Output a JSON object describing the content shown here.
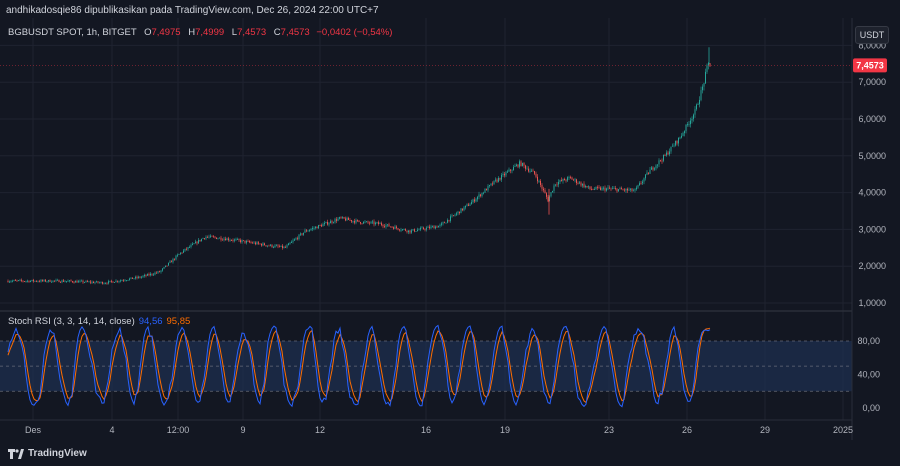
{
  "header": {
    "published_by": "andhikadosqie86 dipublikasikan pada TradingView.com, Dec 26, 2024 22:00 UTC+7"
  },
  "legend": {
    "symbol": "BGBUSDT SPOT, 1h, BITGET",
    "o_label": "O",
    "o_value": "7,4975",
    "h_label": "H",
    "h_value": "7,4999",
    "l_label": "L",
    "l_value": "7,4573",
    "c_label": "C",
    "c_value": "7,4573",
    "change": "−0,0402 (−0,54%)"
  },
  "axis": {
    "unit_label": "USDT",
    "price_ticks": [
      "8,0000",
      "7,0000",
      "6,0000",
      "5,0000",
      "4,0000",
      "3,0000",
      "2,0000",
      "1,0000"
    ],
    "last_price": "7,4573",
    "rsi_ticks": [
      "80,00",
      "40,00",
      "0,00"
    ],
    "x_ticks": [
      "Des",
      "4",
      "12:00",
      "9",
      "12",
      "16",
      "19",
      "23",
      "26",
      "29",
      "2025"
    ]
  },
  "stoch_rsi": {
    "label": "Stoch RSI (3, 3, 14, 14, close)",
    "k_value": "94,56",
    "d_value": "95,85"
  },
  "branding": {
    "name": "TradingView"
  },
  "colors": {
    "up": "#26a69a",
    "down": "#ef5350",
    "k_line": "#2962ff",
    "d_line": "#ff6d00",
    "price_tag": "#f23645",
    "band_fill": "#1e2f4f"
  },
  "chart_data": [
    {
      "type": "candlestick",
      "title": "BGBUSDT SPOT, 1h, BITGET",
      "ylim": [
        1.0,
        8.0
      ],
      "x_ticks": [
        "Des",
        "4",
        "12:00",
        "9",
        "12",
        "16",
        "19",
        "23",
        "26",
        "29",
        "2025"
      ],
      "approx_close_path": [
        {
          "x": "Des",
          "y": 1.6
        },
        {
          "x": "4",
          "y": 1.55
        },
        {
          "x": "12:00",
          "y": 2.0
        },
        {
          "x": "9",
          "y": 2.8
        },
        {
          "x": "12",
          "y": 3.2
        },
        {
          "x": "16",
          "y": 3.0
        },
        {
          "x": "19",
          "y": 4.5
        },
        {
          "x": "23",
          "y": 4.1
        },
        {
          "x": "26",
          "y": 6.3
        },
        {
          "x": "26",
          "y": 7.4573
        }
      ],
      "last_price": 7.4573
    },
    {
      "type": "line",
      "title": "Stoch RSI (3, 3, 14, 14, close)",
      "ylim": [
        0,
        100
      ],
      "bands": [
        20,
        80
      ],
      "midline": 50,
      "series": [
        {
          "name": "K",
          "last": 94.56
        },
        {
          "name": "D",
          "last": 95.85
        }
      ]
    }
  ]
}
